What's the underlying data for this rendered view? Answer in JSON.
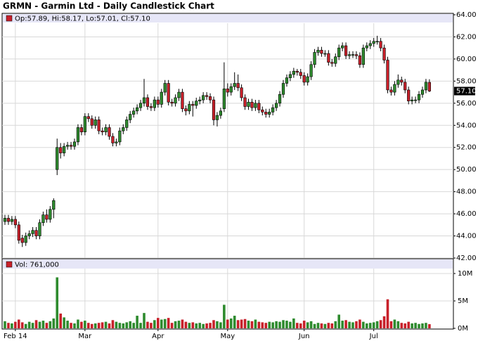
{
  "chart_data": {
    "type": "candlestick",
    "title": "GRMN - Garmin Ltd - Daily Candlestick Chart",
    "legend_label": "Op:57.89, Hi:58.17, Lo:57.01, Cl:57.10",
    "categories": [
      null,
      null,
      null,
      "Feb 14",
      null,
      null,
      null,
      null,
      null,
      null,
      null,
      null,
      null,
      null,
      null,
      null,
      null,
      null,
      null,
      null,
      null,
      null,
      null,
      "Mar",
      null,
      null,
      null,
      null,
      null,
      null,
      null,
      null,
      null,
      null,
      null,
      null,
      null,
      null,
      null,
      null,
      null,
      null,
      null,
      null,
      "Apr",
      null,
      null,
      null,
      null,
      null,
      null,
      null,
      null,
      null,
      null,
      null,
      null,
      null,
      null,
      null,
      null,
      null,
      null,
      null,
      "May",
      null,
      null,
      null,
      null,
      null,
      null,
      null,
      null,
      null,
      null,
      null,
      null,
      null,
      null,
      null,
      null,
      null,
      null,
      null,
      null,
      null,
      "Jun",
      null,
      null,
      null,
      null,
      null,
      null,
      null,
      null,
      null,
      null,
      null,
      null,
      null,
      null,
      null,
      null,
      null,
      null,
      null,
      "Jul",
      null,
      null,
      null,
      null,
      null,
      null,
      null,
      null,
      null,
      null,
      null,
      null,
      null,
      null,
      null,
      null
    ],
    "open": [
      45.3,
      45.6,
      45.3,
      45.5,
      45.0,
      43.8,
      43.4,
      44.0,
      44.2,
      44.5,
      44.0,
      45.2,
      45.9,
      45.5,
      46.4,
      50.0,
      52.0,
      51.5,
      52.1,
      52.2,
      52.1,
      52.5,
      53.8,
      53.4,
      54.8,
      54.6,
      54.0,
      54.5,
      53.5,
      53.4,
      53.8,
      53.0,
      52.4,
      52.5,
      53.5,
      53.8,
      54.5,
      55.0,
      55.3,
      55.6,
      56.0,
      56.5,
      55.7,
      55.6,
      56.3,
      55.9,
      57.0,
      57.8,
      56.1,
      56.0,
      56.5,
      57.0,
      55.5,
      55.3,
      55.9,
      55.8,
      56.2,
      56.3,
      56.7,
      56.6,
      56.3,
      54.5,
      54.9,
      55.5,
      57.3,
      57.0,
      57.5,
      57.8,
      57.4,
      56.5,
      55.7,
      56.1,
      55.6,
      56.0,
      55.4,
      55.2,
      55.0,
      55.2,
      55.6,
      56.0,
      56.8,
      57.8,
      58.3,
      58.6,
      58.9,
      58.8,
      58.5,
      57.9,
      58.4,
      59.5,
      60.6,
      60.8,
      60.5,
      60.5,
      59.7,
      59.6,
      60.2,
      61.0,
      61.2,
      60.3,
      60.4,
      60.4,
      60.3,
      59.5,
      61.0,
      61.2,
      61.4,
      61.6,
      61.6,
      61.0,
      59.9,
      57.2,
      57.0,
      57.7,
      58.1,
      57.9,
      57.2,
      56.2,
      56.3,
      56.3,
      56.8,
      57.2,
      57.89
    ],
    "high": [
      45.9,
      45.9,
      45.8,
      45.8,
      45.3,
      44.1,
      44.3,
      44.5,
      44.8,
      44.8,
      45.5,
      46.2,
      46.4,
      46.7,
      47.4,
      52.8,
      52.4,
      52.4,
      52.5,
      52.5,
      52.8,
      54.1,
      54.1,
      55.1,
      55.1,
      54.9,
      54.8,
      54.8,
      53.8,
      54.1,
      54.1,
      53.3,
      52.8,
      53.8,
      54.1,
      54.8,
      55.3,
      55.6,
      55.9,
      56.3,
      58.2,
      56.8,
      56.0,
      56.6,
      56.6,
      57.3,
      58.1,
      58.1,
      56.4,
      56.8,
      57.3,
      57.3,
      55.8,
      56.2,
      56.2,
      56.5,
      56.6,
      57.0,
      57.0,
      56.9,
      56.6,
      55.2,
      55.6,
      59.7,
      57.8,
      57.8,
      58.8,
      58.6,
      57.7,
      56.8,
      56.4,
      56.4,
      56.3,
      56.3,
      55.7,
      55.5,
      55.5,
      55.9,
      56.3,
      57.1,
      58.1,
      58.6,
      58.9,
      59.2,
      59.1,
      59.1,
      58.8,
      58.7,
      59.8,
      60.9,
      61.1,
      61.1,
      60.8,
      60.8,
      60.0,
      60.5,
      61.3,
      61.5,
      61.5,
      60.7,
      60.7,
      60.7,
      60.6,
      61.3,
      61.5,
      61.7,
      61.9,
      62.1,
      61.9,
      61.3,
      60.2,
      57.5,
      58.0,
      58.6,
      58.4,
      58.2,
      57.5,
      56.6,
      56.6,
      57.1,
      57.5,
      58.2,
      58.17
    ],
    "low": [
      45.0,
      45.0,
      45.0,
      44.7,
      43.3,
      43.0,
      43.1,
      43.7,
      43.9,
      43.7,
      43.7,
      44.9,
      45.2,
      45.2,
      45.6,
      49.5,
      51.0,
      51.2,
      51.8,
      51.8,
      51.8,
      52.2,
      53.1,
      53.1,
      54.3,
      53.7,
      53.7,
      53.2,
      53.1,
      53.1,
      52.7,
      52.1,
      52.1,
      52.2,
      53.2,
      53.5,
      54.2,
      54.7,
      55.0,
      55.3,
      55.7,
      55.4,
      55.3,
      55.3,
      55.6,
      55.6,
      56.7,
      55.8,
      55.7,
      55.7,
      56.2,
      55.2,
      54.9,
      55.0,
      54.8,
      55.5,
      55.9,
      56.0,
      56.3,
      56.0,
      54.0,
      53.9,
      54.6,
      55.2,
      56.6,
      56.7,
      57.2,
      57.1,
      56.2,
      55.4,
      55.4,
      55.3,
      55.3,
      55.1,
      54.9,
      54.7,
      54.7,
      54.9,
      55.3,
      55.7,
      56.5,
      57.5,
      58.0,
      58.3,
      58.5,
      58.2,
      57.6,
      57.6,
      58.1,
      59.2,
      60.3,
      60.2,
      60.2,
      59.4,
      59.3,
      59.3,
      59.9,
      60.7,
      60.0,
      60.0,
      60.1,
      60.0,
      59.2,
      59.2,
      60.7,
      60.9,
      61.1,
      61.3,
      60.7,
      59.6,
      56.9,
      56.7,
      56.7,
      57.4,
      57.6,
      56.9,
      55.9,
      55.9,
      56.0,
      56.0,
      56.5,
      56.9,
      57.01
    ],
    "close": [
      45.6,
      45.3,
      45.5,
      45.0,
      43.6,
      43.4,
      44.0,
      44.2,
      44.5,
      44.0,
      45.2,
      45.9,
      45.5,
      46.4,
      47.2,
      52.0,
      51.5,
      52.1,
      52.2,
      52.1,
      52.5,
      53.8,
      53.4,
      54.8,
      54.6,
      54.0,
      54.5,
      53.5,
      53.4,
      53.8,
      53.0,
      52.4,
      52.5,
      53.5,
      53.8,
      54.5,
      55.0,
      55.3,
      55.6,
      56.0,
      56.5,
      55.7,
      55.6,
      56.3,
      55.9,
      57.0,
      57.8,
      56.1,
      56.0,
      56.5,
      57.0,
      55.5,
      55.3,
      55.9,
      55.8,
      56.2,
      56.3,
      56.7,
      56.6,
      56.3,
      54.5,
      54.9,
      55.3,
      57.3,
      57.0,
      57.5,
      57.8,
      57.4,
      56.5,
      55.7,
      56.1,
      55.6,
      56.0,
      55.4,
      55.2,
      55.0,
      55.2,
      55.6,
      56.0,
      56.8,
      57.8,
      58.3,
      58.6,
      58.9,
      58.8,
      58.5,
      57.9,
      58.4,
      59.5,
      60.6,
      60.8,
      60.5,
      60.5,
      59.7,
      59.6,
      60.2,
      61.0,
      61.2,
      60.3,
      60.4,
      60.4,
      60.3,
      59.5,
      61.0,
      61.2,
      61.4,
      61.6,
      61.6,
      61.0,
      59.9,
      57.2,
      57.0,
      57.7,
      58.1,
      57.9,
      57.2,
      56.2,
      56.3,
      56.3,
      56.8,
      57.2,
      57.9,
      57.1
    ],
    "up_color": "#2e8b2e",
    "down_color": "#c8202a",
    "ylim": [
      42,
      64
    ],
    "yticks": [
      {
        "value": 42,
        "label": "42.00"
      },
      {
        "value": 44,
        "label": "44.00"
      },
      {
        "value": 46,
        "label": "46.00"
      },
      {
        "value": 48,
        "label": "48.00"
      },
      {
        "value": 50,
        "label": "50.00"
      },
      {
        "value": 52,
        "label": "52.00"
      },
      {
        "value": 54,
        "label": "54.00"
      },
      {
        "value": 56,
        "label": "56.00"
      },
      {
        "value": 58,
        "label": "58.00"
      },
      {
        "value": 60,
        "label": "60.00"
      },
      {
        "value": 62,
        "label": "62.00"
      },
      {
        "value": 64,
        "label": "64.00"
      }
    ],
    "last_price": {
      "value": 57.1,
      "label": "57.10"
    },
    "grid": true,
    "volume": {
      "label": "Vol: 761,000",
      "values": [
        1.3,
        1.0,
        0.9,
        1.2,
        1.6,
        1.1,
        0.8,
        1.2,
        1.0,
        1.5,
        1.2,
        1.4,
        1.0,
        1.3,
        1.8,
        9.3,
        2.7,
        2.0,
        1.4,
        1.0,
        0.9,
        1.6,
        1.2,
        1.4,
        1.0,
        0.8,
        0.9,
        1.0,
        1.1,
        1.2,
        0.9,
        1.5,
        1.2,
        1.0,
        0.9,
        1.1,
        1.3,
        1.0,
        2.3,
        1.0,
        2.8,
        1.2,
        1.0,
        1.5,
        1.9,
        1.6,
        1.7,
        1.9,
        1.0,
        1.3,
        1.4,
        1.6,
        1.2,
        1.0,
        1.1,
        0.9,
        1.0,
        0.8,
        0.9,
        1.0,
        1.5,
        1.3,
        1.1,
        4.3,
        1.6,
        1.8,
        2.3,
        1.5,
        1.6,
        1.7,
        1.4,
        1.3,
        1.6,
        1.2,
        1.1,
        1.0,
        1.2,
        1.1,
        1.3,
        1.2,
        1.5,
        1.4,
        1.2,
        1.8,
        1.0,
        0.9,
        1.4,
        1.1,
        1.3,
        0.8,
        1.0,
        0.9,
        0.8,
        1.0,
        0.9,
        1.3,
        2.5,
        1.4,
        1.5,
        1.2,
        1.1,
        1.3,
        1.6,
        1.2,
        0.9,
        1.0,
        1.1,
        1.3,
        1.5,
        2.2,
        5.3,
        1.3,
        1.6,
        1.3,
        1.0,
        0.9,
        1.2,
        0.9,
        1.0,
        0.8,
        0.9,
        1.0,
        0.761
      ],
      "ylim": [
        0,
        10.9
      ],
      "yticks": [
        {
          "value": 0,
          "label": "0M"
        },
        {
          "value": 5,
          "label": "5M"
        },
        {
          "value": 10,
          "label": "10M"
        }
      ]
    }
  }
}
